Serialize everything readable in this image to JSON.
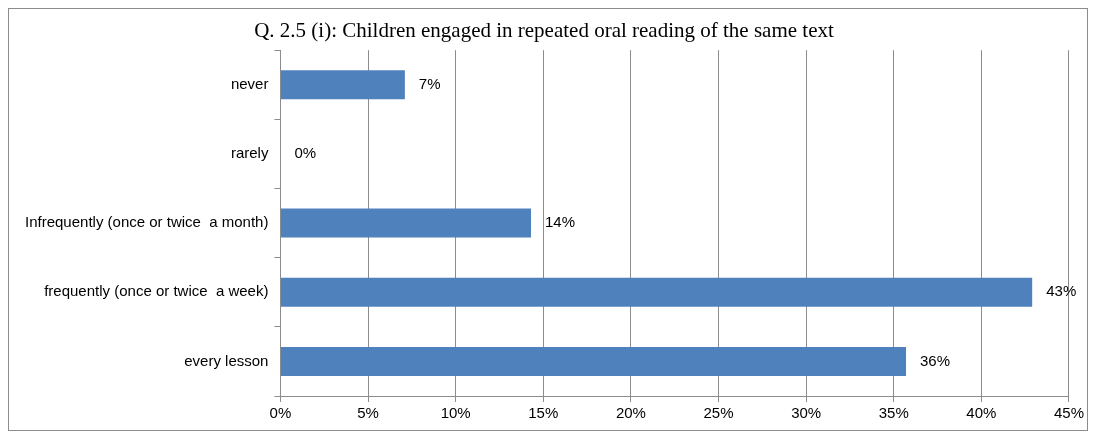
{
  "chart_data": {
    "type": "bar",
    "orientation": "horizontal",
    "title": "Q. 2.5 (i): Children engaged in repeated oral reading of the same text",
    "categories": [
      "never",
      "rarely",
      "Infrequently (once or twice  a month)",
      "frequently (once or twice  a week)",
      "every lesson"
    ],
    "values": [
      7.1,
      0,
      14.3,
      42.9,
      35.7
    ],
    "value_labels": [
      "7%",
      "0%",
      "14%",
      "43%",
      "36%"
    ],
    "color": "#4f81bd",
    "xlim": [
      0,
      45
    ],
    "xticks": [
      {
        "value": 0,
        "label": "0%"
      },
      {
        "value": 5,
        "label": "5%"
      },
      {
        "value": 10,
        "label": "10%"
      },
      {
        "value": 15,
        "label": "15%"
      },
      {
        "value": 20,
        "label": "20%"
      },
      {
        "value": 25,
        "label": "25%"
      },
      {
        "value": 30,
        "label": "30%"
      },
      {
        "value": 35,
        "label": "35%"
      },
      {
        "value": 40,
        "label": "40%"
      },
      {
        "value": 45,
        "label": "45%"
      }
    ],
    "grid": "x",
    "legend": false
  }
}
